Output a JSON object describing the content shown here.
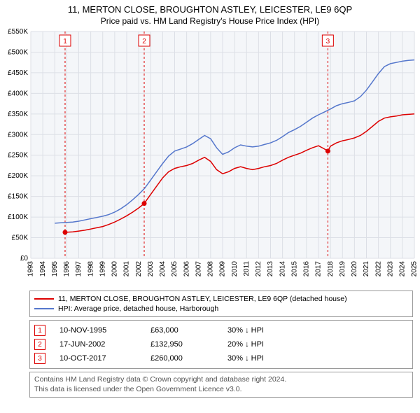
{
  "title_line1": "11, MERTON CLOSE, BROUGHTON ASTLEY, LEICESTER, LE9 6QP",
  "title_line2": "Price paid vs. HM Land Registry's House Price Index (HPI)",
  "chart": {
    "type": "line",
    "background_color": "#ffffff",
    "plot_bg_color": "#f4f6f9",
    "grid_color": "#dcdfe6",
    "axis_text_color": "#000000",
    "x_years": [
      1993,
      1994,
      1995,
      1996,
      1997,
      1998,
      1999,
      2000,
      2001,
      2002,
      2003,
      2004,
      2005,
      2006,
      2007,
      2008,
      2009,
      2010,
      2011,
      2012,
      2013,
      2014,
      2015,
      2016,
      2017,
      2018,
      2019,
      2020,
      2021,
      2022,
      2023,
      2024,
      2025
    ],
    "x_label_fontsize": 10,
    "y_min": 0,
    "y_max": 550000,
    "y_tick_step": 50000,
    "y_tick_labels": [
      "£0",
      "£50K",
      "£100K",
      "£150K",
      "£200K",
      "£250K",
      "£300K",
      "£350K",
      "£400K",
      "£450K",
      "£500K",
      "£550K"
    ],
    "y_label_fontsize": 10,
    "series": [
      {
        "name": "property",
        "label": "11, MERTON CLOSE, BROUGHTON ASTLEY, LEICESTER, LE9 6QP (detached house)",
        "color": "#dd0000",
        "line_width": 1.5,
        "data": [
          [
            1995.86,
            63000
          ],
          [
            1996.5,
            64000
          ],
          [
            1997.0,
            66000
          ],
          [
            1997.5,
            68000
          ],
          [
            1998.0,
            71000
          ],
          [
            1998.5,
            74000
          ],
          [
            1999.0,
            77000
          ],
          [
            1999.5,
            82000
          ],
          [
            2000.0,
            88000
          ],
          [
            2000.5,
            95000
          ],
          [
            2001.0,
            103000
          ],
          [
            2001.5,
            112000
          ],
          [
            2002.0,
            122000
          ],
          [
            2002.46,
            132950
          ],
          [
            2003.0,
            155000
          ],
          [
            2003.5,
            175000
          ],
          [
            2004.0,
            195000
          ],
          [
            2004.5,
            210000
          ],
          [
            2005.0,
            218000
          ],
          [
            2005.5,
            222000
          ],
          [
            2006.0,
            225000
          ],
          [
            2006.5,
            230000
          ],
          [
            2007.0,
            238000
          ],
          [
            2007.5,
            245000
          ],
          [
            2008.0,
            235000
          ],
          [
            2008.5,
            215000
          ],
          [
            2009.0,
            205000
          ],
          [
            2009.5,
            210000
          ],
          [
            2010.0,
            218000
          ],
          [
            2010.5,
            222000
          ],
          [
            2011.0,
            218000
          ],
          [
            2011.5,
            215000
          ],
          [
            2012.0,
            218000
          ],
          [
            2012.5,
            222000
          ],
          [
            2013.0,
            225000
          ],
          [
            2013.5,
            230000
          ],
          [
            2014.0,
            238000
          ],
          [
            2014.5,
            245000
          ],
          [
            2015.0,
            250000
          ],
          [
            2015.5,
            255000
          ],
          [
            2016.0,
            262000
          ],
          [
            2016.5,
            268000
          ],
          [
            2017.0,
            273000
          ],
          [
            2017.5,
            265000
          ],
          [
            2017.78,
            260000
          ],
          [
            2018.0,
            272000
          ],
          [
            2018.5,
            280000
          ],
          [
            2019.0,
            285000
          ],
          [
            2019.5,
            288000
          ],
          [
            2020.0,
            292000
          ],
          [
            2020.5,
            298000
          ],
          [
            2021.0,
            308000
          ],
          [
            2021.5,
            320000
          ],
          [
            2022.0,
            332000
          ],
          [
            2022.5,
            340000
          ],
          [
            2023.0,
            343000
          ],
          [
            2023.5,
            345000
          ],
          [
            2024.0,
            348000
          ],
          [
            2024.5,
            349000
          ],
          [
            2025.0,
            350000
          ]
        ]
      },
      {
        "name": "hpi",
        "label": "HPI: Average price, detached house, Harborough",
        "color": "#5577cc",
        "line_width": 1.5,
        "data": [
          [
            1995.0,
            85000
          ],
          [
            1995.5,
            86000
          ],
          [
            1996.0,
            87000
          ],
          [
            1996.5,
            88000
          ],
          [
            1997.0,
            90000
          ],
          [
            1997.5,
            93000
          ],
          [
            1998.0,
            96000
          ],
          [
            1998.5,
            99000
          ],
          [
            1999.0,
            102000
          ],
          [
            1999.5,
            106000
          ],
          [
            2000.0,
            112000
          ],
          [
            2000.5,
            120000
          ],
          [
            2001.0,
            130000
          ],
          [
            2001.5,
            142000
          ],
          [
            2002.0,
            155000
          ],
          [
            2002.5,
            170000
          ],
          [
            2003.0,
            190000
          ],
          [
            2003.5,
            210000
          ],
          [
            2004.0,
            230000
          ],
          [
            2004.5,
            248000
          ],
          [
            2005.0,
            260000
          ],
          [
            2005.5,
            265000
          ],
          [
            2006.0,
            270000
          ],
          [
            2006.5,
            278000
          ],
          [
            2007.0,
            288000
          ],
          [
            2007.5,
            298000
          ],
          [
            2008.0,
            290000
          ],
          [
            2008.5,
            268000
          ],
          [
            2009.0,
            252000
          ],
          [
            2009.5,
            258000
          ],
          [
            2010.0,
            268000
          ],
          [
            2010.5,
            275000
          ],
          [
            2011.0,
            272000
          ],
          [
            2011.5,
            270000
          ],
          [
            2012.0,
            272000
          ],
          [
            2012.5,
            276000
          ],
          [
            2013.0,
            280000
          ],
          [
            2013.5,
            286000
          ],
          [
            2014.0,
            295000
          ],
          [
            2014.5,
            305000
          ],
          [
            2015.0,
            312000
          ],
          [
            2015.5,
            320000
          ],
          [
            2016.0,
            330000
          ],
          [
            2016.5,
            340000
          ],
          [
            2017.0,
            348000
          ],
          [
            2017.5,
            355000
          ],
          [
            2018.0,
            362000
          ],
          [
            2018.5,
            370000
          ],
          [
            2019.0,
            375000
          ],
          [
            2019.5,
            378000
          ],
          [
            2020.0,
            382000
          ],
          [
            2020.5,
            392000
          ],
          [
            2021.0,
            408000
          ],
          [
            2021.5,
            428000
          ],
          [
            2022.0,
            448000
          ],
          [
            2022.5,
            465000
          ],
          [
            2023.0,
            472000
          ],
          [
            2023.5,
            475000
          ],
          [
            2024.0,
            478000
          ],
          [
            2024.5,
            480000
          ],
          [
            2025.0,
            481000
          ]
        ]
      }
    ],
    "markers": [
      {
        "id": "1",
        "year": 1995.86,
        "value": 63000,
        "label_y_offset": -60
      },
      {
        "id": "2",
        "year": 2002.46,
        "value": 132950,
        "label_y_offset": -70
      },
      {
        "id": "3",
        "year": 2017.78,
        "value": 260000,
        "label_y_offset": -120
      }
    ],
    "marker_line_color": "#dd0000",
    "marker_line_dash": "3,3",
    "marker_point_color": "#dd0000",
    "marker_badge_border": "#dd0000",
    "marker_badge_text": "#dd0000",
    "plot_x_start": 1993,
    "plot_x_end": 2025
  },
  "legend": {
    "rows": [
      {
        "color": "#dd0000",
        "label": "11, MERTON CLOSE, BROUGHTON ASTLEY, LEICESTER, LE9 6QP (detached house)"
      },
      {
        "color": "#5577cc",
        "label": "HPI: Average price, detached house, Harborough"
      }
    ]
  },
  "marker_table": [
    {
      "id": "1",
      "date": "10-NOV-1995",
      "price": "£63,000",
      "delta": "30% ↓ HPI"
    },
    {
      "id": "2",
      "date": "17-JUN-2002",
      "price": "£132,950",
      "delta": "20% ↓ HPI"
    },
    {
      "id": "3",
      "date": "10-OCT-2017",
      "price": "£260,000",
      "delta": "30% ↓ HPI"
    }
  ],
  "footer_line1": "Contains HM Land Registry data © Crown copyright and database right 2024.",
  "footer_line2": "This data is licensed under the Open Government Licence v3.0."
}
